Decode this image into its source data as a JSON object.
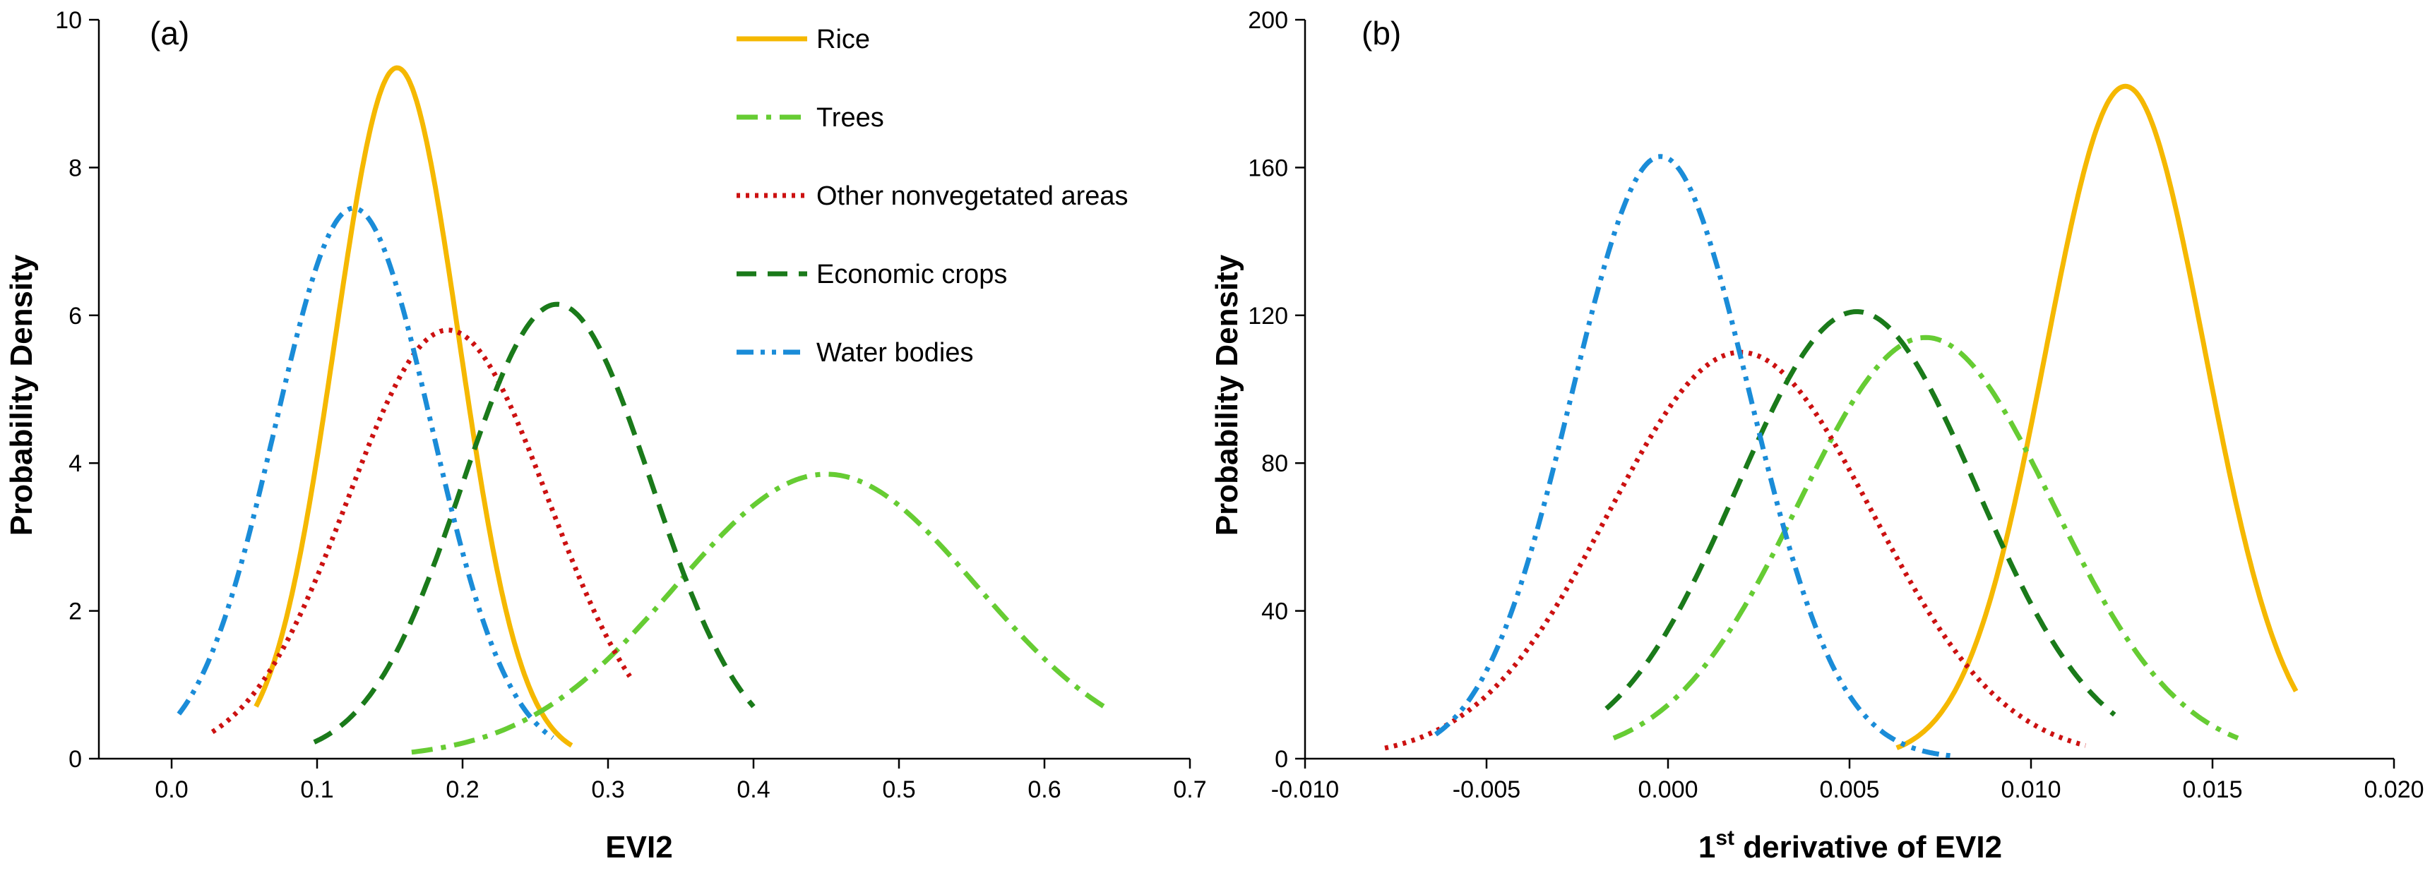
{
  "chart_data": [
    {
      "type": "line",
      "panel_label": "(a)",
      "xlabel": "EVI2",
      "ylabel": "Probability Density",
      "xlim": [
        -0.05,
        0.7
      ],
      "ylim": [
        0,
        10
      ],
      "xticks": [
        0.0,
        0.1,
        0.2,
        0.3,
        0.4,
        0.5,
        0.6,
        0.7
      ],
      "xtick_labels": [
        "0.0",
        "0.1",
        "0.2",
        "0.3",
        "0.4",
        "0.5",
        "0.6",
        "0.7"
      ],
      "yticks": [
        0,
        2,
        4,
        6,
        8,
        10
      ],
      "ytick_labels": [
        "0",
        "2",
        "4",
        "6",
        "8",
        "10"
      ],
      "legend_position": "top-right",
      "series": [
        {
          "name": "Rice",
          "color": "#F5B800",
          "dash": "solid",
          "distribution": "normal",
          "mean": 0.155,
          "peak": 9.35,
          "x_range": [
            0.058,
            0.275
          ]
        },
        {
          "name": "Trees",
          "color": "#66CC33",
          "dash": "dash-dot",
          "distribution": "normal",
          "mean": 0.45,
          "peak": 3.85,
          "x_range": [
            0.165,
            0.645
          ]
        },
        {
          "name": "Other nonvegetated areas",
          "color": "#CC1111",
          "dash": "dotted",
          "distribution": "normal",
          "mean": 0.19,
          "peak": 5.8,
          "x_range": [
            0.028,
            0.315
          ]
        },
        {
          "name": "Economic crops",
          "color": "#1A7A1A",
          "dash": "dashed",
          "distribution": "normal",
          "mean": 0.265,
          "peak": 6.15,
          "x_range": [
            0.098,
            0.4
          ]
        },
        {
          "name": "Water bodies",
          "color": "#1A8CD8",
          "dash": "dash-dot-dot",
          "distribution": "normal",
          "mean": 0.125,
          "peak": 7.45,
          "x_range": [
            0.005,
            0.262
          ]
        }
      ]
    },
    {
      "type": "line",
      "panel_label": "(b)",
      "xlabel_main": "1",
      "xlabel_sup": "st",
      "xlabel_rest": " derivative of EVI2",
      "ylabel": "Probability Density",
      "xlim": [
        -0.01,
        0.02
      ],
      "ylim": [
        0,
        200
      ],
      "xticks": [
        -0.01,
        -0.005,
        0.0,
        0.005,
        0.01,
        0.015,
        0.02
      ],
      "xtick_labels": [
        "-0.010",
        "-0.005",
        "0.000",
        "0.005",
        "0.010",
        "0.015",
        "0.020"
      ],
      "yticks": [
        0,
        40,
        80,
        120,
        160,
        200
      ],
      "ytick_labels": [
        "0",
        "40",
        "80",
        "120",
        "160",
        "200"
      ],
      "series": [
        {
          "name": "Rice",
          "color": "#F5B800",
          "dash": "solid",
          "distribution": "normal",
          "mean": 0.0126,
          "peak": 182,
          "x_range": [
            0.0063,
            0.0173
          ]
        },
        {
          "name": "Trees",
          "color": "#66CC33",
          "dash": "dash-dot",
          "distribution": "normal",
          "mean": 0.0071,
          "peak": 114,
          "x_range": [
            -0.0015,
            0.0157
          ]
        },
        {
          "name": "Other nonvegetated areas",
          "color": "#CC1111",
          "dash": "dotted",
          "distribution": "normal",
          "mean": 0.002,
          "peak": 110,
          "x_range": [
            -0.0078,
            0.0115
          ]
        },
        {
          "name": "Economic crops",
          "color": "#1A7A1A",
          "dash": "dashed",
          "distribution": "normal",
          "mean": 0.0052,
          "peak": 121,
          "x_range": [
            -0.0017,
            0.0123
          ]
        },
        {
          "name": "Water bodies",
          "color": "#1A8CD8",
          "dash": "dash-dot-dot",
          "distribution": "normal",
          "mean": -0.0002,
          "peak": 163,
          "x_range": [
            -0.0064,
            0.0078
          ]
        }
      ]
    }
  ]
}
